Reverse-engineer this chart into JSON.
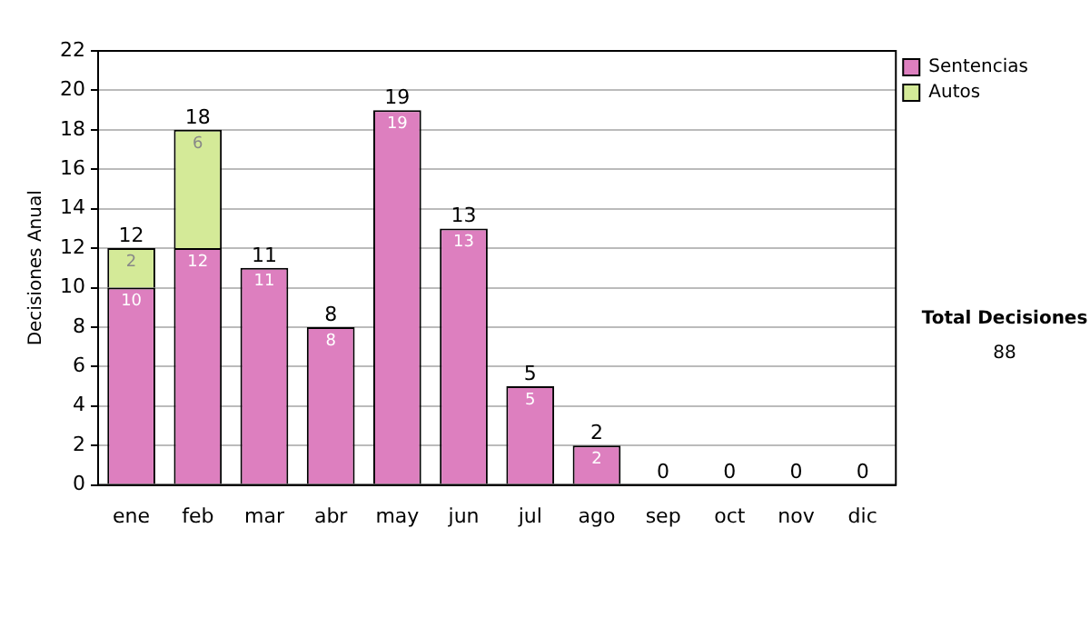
{
  "chart_data": {
    "type": "bar",
    "stacked": true,
    "ylabel": "Decisiones Anual",
    "categories": [
      "ene",
      "feb",
      "mar",
      "abr",
      "may",
      "jun",
      "jul",
      "ago",
      "sep",
      "oct",
      "nov",
      "dic"
    ],
    "series": [
      {
        "name": "Sentencias",
        "color": "#dd7fbf",
        "values": [
          10,
          12,
          11,
          8,
          19,
          13,
          5,
          2,
          0,
          0,
          0,
          0
        ],
        "value_labels": [
          "10",
          "12",
          "11",
          "8",
          "19",
          "13",
          "5",
          "2",
          null,
          null,
          null,
          null
        ]
      },
      {
        "name": "Autos",
        "color": "#d4ea98",
        "values": [
          2,
          6,
          0,
          0,
          0,
          0,
          0,
          0,
          0,
          0,
          0,
          0
        ],
        "value_labels": [
          "2",
          "6",
          null,
          null,
          null,
          null,
          null,
          null,
          null,
          null,
          null,
          null
        ]
      }
    ],
    "totals": [
      "12",
      "18",
      "11",
      "8",
      "19",
      "13",
      "5",
      "2",
      "0",
      "0",
      "0",
      "0"
    ],
    "ylim": [
      0,
      22
    ],
    "yticks": [
      0,
      2,
      4,
      6,
      8,
      10,
      12,
      14,
      16,
      18,
      20,
      22
    ],
    "grid": "y",
    "legend": "right",
    "annotations": [
      "Total Decisiones",
      "88"
    ]
  }
}
